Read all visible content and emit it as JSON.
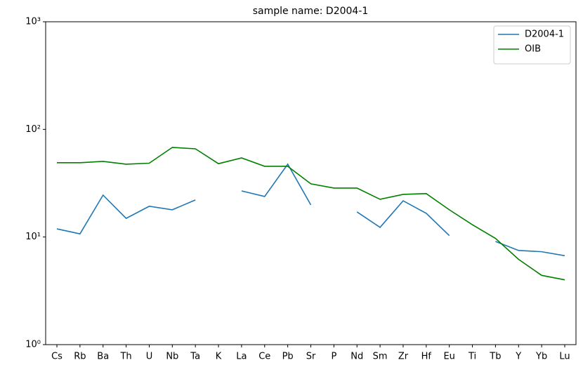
{
  "chart_data": {
    "type": "line",
    "title": "sample name: D2004-1",
    "categories": [
      "Cs",
      "Rb",
      "Ba",
      "Th",
      "U",
      "Nb",
      "Ta",
      "K",
      "La",
      "Ce",
      "Pb",
      "Sr",
      "P",
      "Nd",
      "Sm",
      "Zr",
      "Hf",
      "Eu",
      "Ti",
      "Tb",
      "Y",
      "Yb",
      "Lu"
    ],
    "series": [
      {
        "name": "D2004-1",
        "color": "#1f77b4",
        "values": [
          11.9,
          10.7,
          24.5,
          14.9,
          19.3,
          17.9,
          22.1,
          null,
          26.8,
          23.8,
          47.5,
          19.9,
          null,
          17.1,
          12.3,
          21.7,
          16.6,
          10.3,
          null,
          9.1,
          7.5,
          7.3,
          6.7
        ]
      },
      {
        "name": "OIB",
        "color": "#008000",
        "values": [
          49,
          49,
          50.4,
          47.5,
          48.5,
          68,
          66,
          48,
          54.3,
          45.4,
          45.4,
          31.2,
          28.5,
          28.5,
          22.4,
          24.9,
          25.3,
          17.9,
          13.0,
          9.7,
          6.2,
          4.4,
          4.0
        ]
      }
    ],
    "ylim": [
      1,
      1000
    ],
    "log_y": true,
    "yticks": [
      {
        "value": 1,
        "label": "10⁰"
      },
      {
        "value": 10,
        "label": "10¹"
      },
      {
        "value": 100,
        "label": "10²"
      },
      {
        "value": 1000,
        "label": "10³"
      }
    ],
    "legend": "upper right"
  }
}
